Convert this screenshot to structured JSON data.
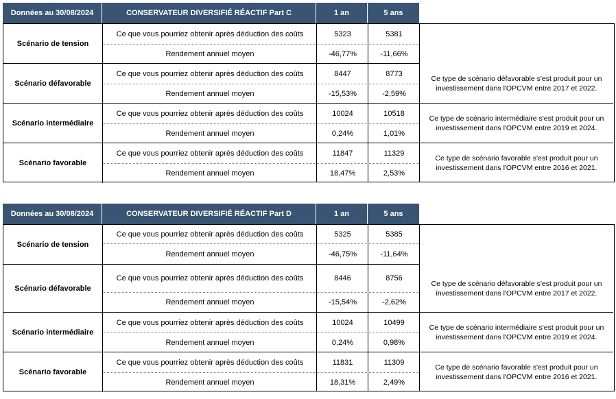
{
  "tables": [
    {
      "header": {
        "date": "Données au 30/08/2024",
        "fund": "CONSERVATEUR DIVERSIFIÉ RÉACTIF Part C",
        "col1": "1 an",
        "col2": "5 ans"
      },
      "scenarios": [
        {
          "name": "Scénario de tension",
          "row1_label": "Ce que vous pourriez obtenir après déduction des coûts",
          "row1_v1": "5323",
          "row1_v2": "5381",
          "row2_label": "Rendement annuel moyen",
          "row2_v1": "-46,77%",
          "row2_v2": "-11,66%",
          "desc": ""
        },
        {
          "name": "Scénario défavorable",
          "row1_label": "Ce que vous pourriez obtenir après déduction des coûts",
          "row1_v1": "8447",
          "row1_v2": "8773",
          "row2_label": "Rendement annuel moyen",
          "row2_v1": "-15,53%",
          "row2_v2": "-2,59%",
          "desc": "Ce type de scénario défavorable s'est produit pour un investissement dans l'OPCVM entre 2017 et 2022."
        },
        {
          "name": "Scénario intermédiaire",
          "row1_label": "Ce que vous pourriez obtenir après déduction des coûts",
          "row1_v1": "10024",
          "row1_v2": "10518",
          "row2_label": "Rendement annuel moyen",
          "row2_v1": "0,24%",
          "row2_v2": "1,01%",
          "desc": "Ce type de scénario intermédiaire s'est produit pour un investissement dans l'OPCVM entre 2019 et 2024."
        },
        {
          "name": "Scénario favorable",
          "row1_label": "Ce que vous pourriez obtenir après déduction des coûts",
          "row1_v1": "11847",
          "row1_v2": "11329",
          "row2_label": "Rendement annuel moyen",
          "row2_v1": "18,47%",
          "row2_v2": "2,53%",
          "desc": "Ce type de scénario favorable s'est produit pour un investissement dans l'OPCVM entre 2016 et 2021."
        }
      ]
    },
    {
      "header": {
        "date": "Données au 30/08/2024",
        "fund": "CONSERVATEUR DIVERSIFIÉ RÉACTIF Part D",
        "col1": "1 an",
        "col2": "5 ans"
      },
      "scenarios": [
        {
          "name": "Scénario de tension",
          "row1_label": "Ce que vous pourriez obtenir après déduction des coûts",
          "row1_v1": "5325",
          "row1_v2": "5385",
          "row2_label": "Rendement annuel moyen",
          "row2_v1": "-46,75%",
          "row2_v2": "-11,64%",
          "desc": ""
        },
        {
          "name": "Scénario défavorable",
          "row1_label": "Ce que vous pourriez obtenir après déduction des coûts",
          "row1_v1": "8446",
          "row1_v2": "8756",
          "row2_label": "Rendement annuel moyen",
          "row2_v1": "-15,54%",
          "row2_v2": "-2,62%",
          "desc": "Ce type de scénario défavorable s'est produit pour un investissement dans l'OPCVM entre 2017 et 2022."
        },
        {
          "name": "Scénario intermédiaire",
          "row1_label": "Ce que vous pourriez obtenir après déduction des coûts",
          "row1_v1": "10024",
          "row1_v2": "10499",
          "row2_label": "Rendement annuel moyen",
          "row2_v1": "0,24%",
          "row2_v2": "0,98%",
          "desc": "Ce type de scénario intermédiaire s'est produit pour un investissement dans l'OPCVM entre 2019 et 2024."
        },
        {
          "name": "Scénario favorable",
          "row1_label": "Ce que vous pourriez obtenir après déduction des coûts",
          "row1_v1": "11831",
          "row1_v2": "11309",
          "row2_label": "Rendement annuel moyen",
          "row2_v1": "18,31%",
          "row2_v2": "2,49%",
          "desc": "Ce type de scénario favorable s'est produit pour un investissement dans l'OPCVM entre 2016 et 2021."
        }
      ]
    }
  ],
  "colors": {
    "header_bg": "#3a5573",
    "header_text": "#ffffff"
  }
}
